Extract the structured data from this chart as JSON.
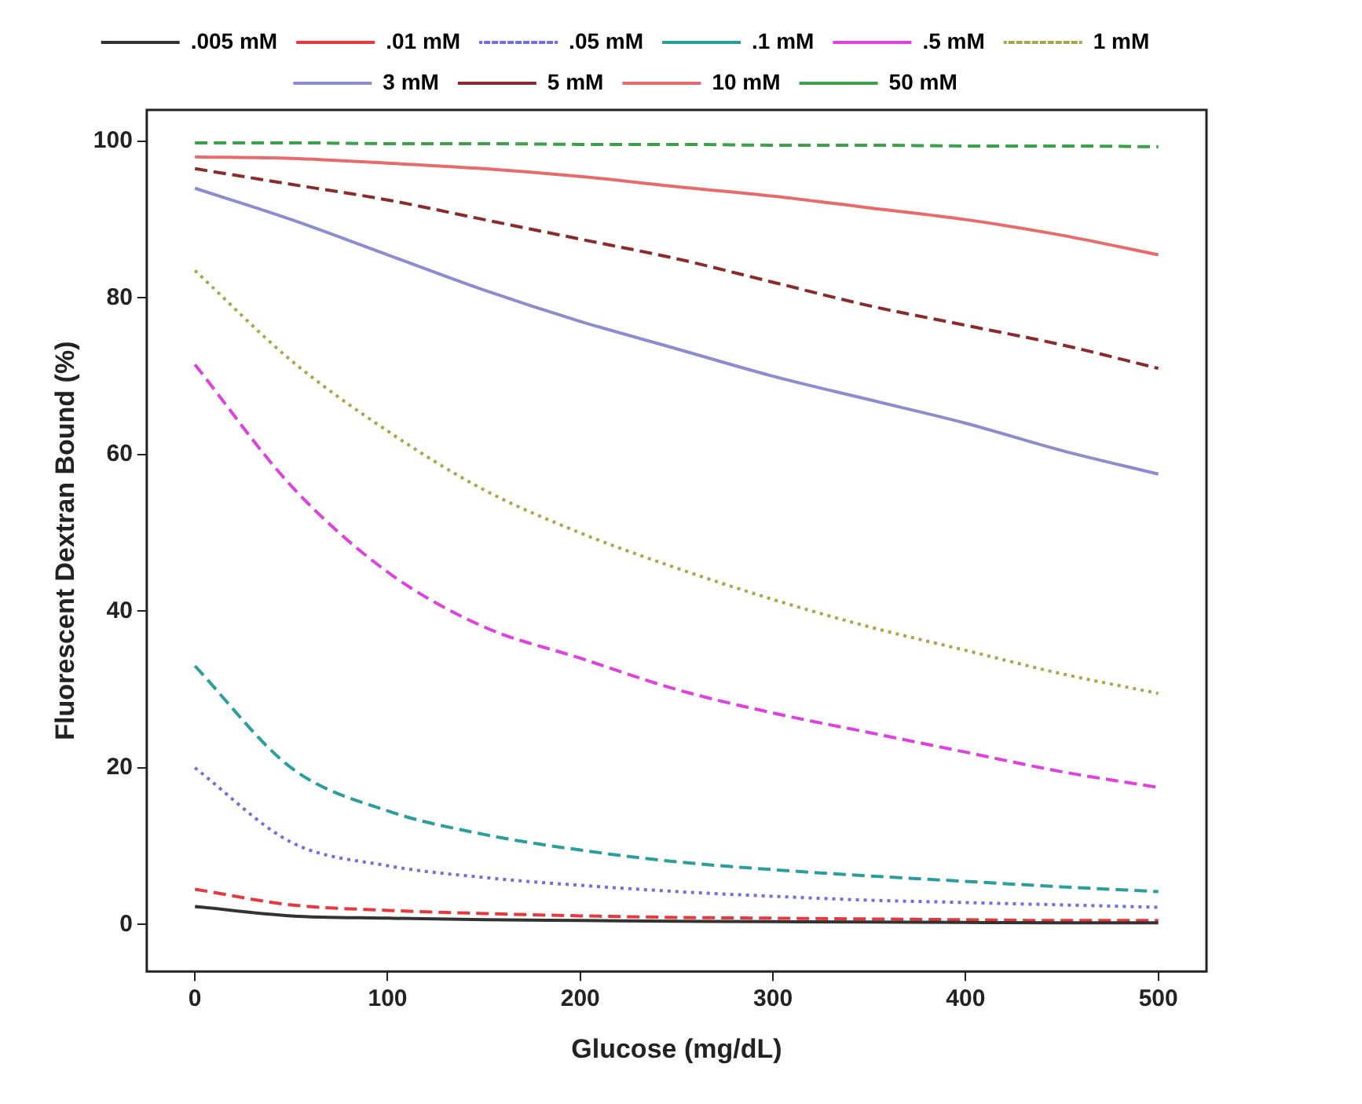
{
  "chart_data": {
    "type": "line",
    "xlabel": "Glucose (mg/dL)",
    "ylabel": "Fluorescent Dextran Bound (%)",
    "x": [
      0,
      50,
      100,
      150,
      200,
      250,
      300,
      350,
      400,
      450,
      500
    ],
    "xlim": [
      -25,
      525
    ],
    "xticks": [
      0,
      100,
      200,
      300,
      400,
      500
    ],
    "ylim": [
      -6,
      104
    ],
    "yticks": [
      0,
      20,
      40,
      60,
      80,
      100
    ],
    "grid": false,
    "legend": "top",
    "marker": "none",
    "series": [
      {
        "name": ".005 mM",
        "color": "#333333",
        "line_style": "solid",
        "values": [
          2.3,
          1.1,
          0.8,
          0.6,
          0.5,
          0.4,
          0.35,
          0.3,
          0.25,
          0.22,
          0.2
        ]
      },
      {
        "name": ".01 mM",
        "color": "#e8383d",
        "line_style": "dashed",
        "values": [
          4.5,
          2.5,
          1.8,
          1.4,
          1.1,
          0.9,
          0.8,
          0.7,
          0.6,
          0.5,
          0.5
        ]
      },
      {
        "name": ".05 mM",
        "color": "#6f6fe0",
        "line_style": "dotted",
        "values": [
          20,
          10.5,
          7.5,
          6,
          5,
          4.2,
          3.6,
          3.1,
          2.8,
          2.5,
          2.2
        ]
      },
      {
        "name": ".1 mM",
        "color": "#2a9d9d",
        "line_style": "dashed",
        "values": [
          33,
          20,
          14.5,
          11.5,
          9.5,
          8,
          7,
          6.2,
          5.5,
          4.8,
          4.2
        ]
      },
      {
        "name": ".5 mM",
        "color": "#e040e0",
        "line_style": "dashed",
        "values": [
          71.5,
          56,
          45,
          38,
          34,
          30,
          27,
          24.5,
          22,
          19.5,
          17.5
        ]
      },
      {
        "name": "1 mM",
        "color": "#a8a84a",
        "line_style": "dotted",
        "values": [
          83.5,
          72,
          63,
          55.5,
          50,
          45.5,
          41.5,
          38,
          35,
          32,
          29.5
        ]
      },
      {
        "name": "3 mM",
        "color": "#8c8cd0",
        "line_style": "solid",
        "values": [
          94,
          90,
          85.5,
          81,
          77,
          73.5,
          70,
          67,
          64,
          60.5,
          57.5
        ]
      },
      {
        "name": "5 mM",
        "color": "#8b2a2a",
        "line_style": "dashed",
        "values": [
          96.5,
          94.5,
          92.5,
          90,
          87.5,
          85,
          82,
          79,
          76.5,
          74,
          71
        ]
      },
      {
        "name": "10 mM",
        "color": "#e86a6a",
        "line_style": "solid",
        "values": [
          98,
          97.8,
          97.2,
          96.5,
          95.5,
          94.2,
          93,
          91.5,
          90,
          88,
          85.5
        ]
      },
      {
        "name": "50 mM",
        "color": "#3aa04a",
        "line_style": "dashed",
        "values": [
          99.8,
          99.8,
          99.7,
          99.7,
          99.6,
          99.6,
          99.5,
          99.5,
          99.4,
          99.4,
          99.3
        ]
      }
    ]
  }
}
